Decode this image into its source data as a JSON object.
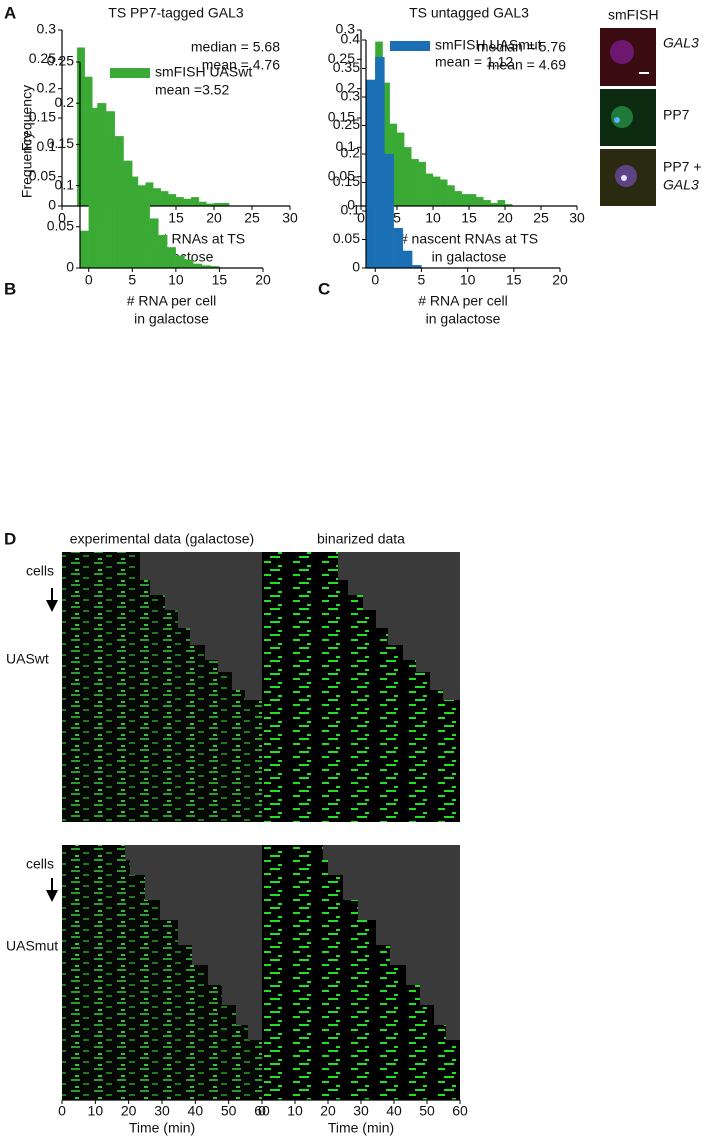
{
  "chart_data": [
    {
      "type": "histogram",
      "title": "TS PP7-tagged GAL3",
      "ylabel": "Frequency",
      "xlabel": [
        "# nascent RNAs at TS",
        "in galactose"
      ],
      "bins": [
        2,
        3,
        4,
        5,
        6,
        7,
        8,
        9,
        10,
        11,
        12,
        13,
        14,
        15,
        16,
        17,
        18,
        19,
        20,
        21,
        22
      ],
      "values": [
        0.27,
        0.22,
        0.167,
        0.12,
        0.09,
        0.09,
        0.07,
        0.05,
        0.035,
        0.04,
        0.03,
        0.025,
        0.02,
        0.015,
        0.012,
        0.015,
        0.007,
        0.004,
        0.005,
        0.005
      ],
      "color": "#3aaa35",
      "xlim": [
        0,
        30
      ],
      "xticks": [
        0,
        5,
        10,
        15,
        20,
        25,
        30
      ],
      "ylim": [
        0,
        0.3
      ],
      "yticks": [
        0,
        0.05,
        0.1,
        0.15,
        0.2,
        0.25,
        0.3
      ],
      "annotations": [
        "median = 5.68",
        "mean = 4.76"
      ]
    },
    {
      "type": "histogram",
      "title": "TS untagged GAL3",
      "xlabel": [
        "# nascent RNAs at TS",
        "in galactose"
      ],
      "bins": [
        2,
        3,
        4,
        5,
        6,
        7,
        8,
        9,
        10,
        11,
        12,
        13,
        14,
        15,
        16,
        17,
        18,
        19,
        20,
        21
      ],
      "values": [
        0.28,
        0.21,
        0.14,
        0.125,
        0.1,
        0.08,
        0.075,
        0.055,
        0.05,
        0.045,
        0.035,
        0.025,
        0.02,
        0.02,
        0.015,
        0.01,
        0.005,
        0.01,
        0.003
      ],
      "color": "#3aaa35",
      "xlim": [
        0,
        30
      ],
      "xticks": [
        0,
        5,
        10,
        15,
        20,
        25,
        30
      ],
      "ylim": [
        0,
        0.3
      ],
      "yticks": [
        0,
        0.05,
        0.1,
        0.15,
        0.2,
        0.25,
        0.3
      ],
      "annotations": [
        "median = 5.76",
        "mean = 4.69"
      ]
    },
    {
      "type": "histogram",
      "ylabel": "Frequency",
      "xlabel": [
        "# RNA per cell",
        "in galactose"
      ],
      "bins": [
        -1,
        0,
        1,
        2,
        3,
        4,
        5,
        6,
        7,
        8,
        9,
        10,
        11,
        12,
        13,
        14,
        15
      ],
      "series": [
        {
          "name": "smFISH UASwt",
          "color": "#3aaa35",
          "values": [
            0.045,
            0.14,
            0.2,
            0.19,
            0.16,
            0.13,
            0.1,
            0.08,
            0.06,
            0.04,
            0.025,
            0.015,
            0.01,
            0.005,
            0.003,
            0.002
          ]
        }
      ],
      "xlim": [
        -1,
        20
      ],
      "xticks": [
        0,
        5,
        10,
        15,
        20
      ],
      "ylim": [
        0,
        0.25
      ],
      "yticks": [
        0,
        0.05,
        0.1,
        0.15,
        0.2,
        0.25
      ],
      "annotations": [
        "mean =3.52"
      ]
    },
    {
      "type": "histogram",
      "xlabel": [
        "# RNA per cell",
        "in galactose"
      ],
      "bins": [
        -1,
        0,
        1,
        2,
        3,
        4,
        5
      ],
      "series": [
        {
          "name": "smFISH UASmut",
          "color": "#1a6fb5",
          "values": [
            0.33,
            0.37,
            0.2,
            0.07,
            0.03,
            0.005
          ]
        }
      ],
      "xlim": [
        -1,
        20
      ],
      "xticks": [
        0,
        5,
        10,
        15,
        20
      ],
      "ylim": [
        0,
        0.4
      ],
      "yticks": [
        0,
        0.05,
        0.1,
        0.15,
        0.2,
        0.25,
        0.3,
        0.35,
        0.4
      ],
      "annotations": [
        "mean = 1.12"
      ]
    }
  ],
  "panel_labels": [
    "A",
    "B",
    "C",
    "D"
  ],
  "smfish": {
    "title": "smFISH",
    "labels": [
      "GAL3",
      "PP7",
      "PP7 +",
      "GAL3"
    ]
  },
  "panel_d": {
    "columns": [
      "experimental data (galactose)",
      "binarized data"
    ],
    "rows": [
      {
        "arrow": "cells",
        "label": "UASwt"
      },
      {
        "arrow": "cells",
        "label": "UASmut"
      }
    ],
    "xlim": [
      0,
      60
    ],
    "xticks": [
      0,
      10,
      20,
      30,
      40,
      50,
      60
    ],
    "xlabel": "Time (min)"
  }
}
